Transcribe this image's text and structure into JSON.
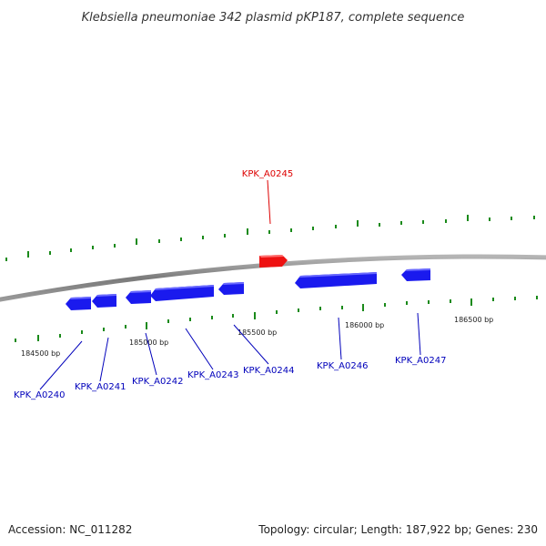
{
  "title": "Klebsiella pneumoniae 342 plasmid pKP187, complete sequence",
  "footer": {
    "accession": "Accession: NC_011282",
    "summary": "Topology: circular; Length: 187,922 bp; Genes: 230"
  },
  "colors": {
    "forward_gene": "#ee1111",
    "reverse_gene": "#1a1aee",
    "backbone": "#8a8a8a",
    "tick": "#1a8a1a",
    "forward_label": "#dd0000",
    "reverse_label": "#0000bb"
  },
  "position_labels": [
    "184500 bp",
    "185000 bp",
    "185500 bp",
    "186000 bp",
    "186500 bp"
  ],
  "genes": [
    {
      "name": "KPK_A0240",
      "strand": "reverse"
    },
    {
      "name": "KPK_A0241",
      "strand": "reverse"
    },
    {
      "name": "KPK_A0242",
      "strand": "reverse"
    },
    {
      "name": "KPK_A0243",
      "strand": "reverse"
    },
    {
      "name": "KPK_A0244",
      "strand": "reverse"
    },
    {
      "name": "KPK_A0245",
      "strand": "forward"
    },
    {
      "name": "KPK_A0246",
      "strand": "reverse"
    },
    {
      "name": "KPK_A0247",
      "strand": "reverse"
    }
  ]
}
